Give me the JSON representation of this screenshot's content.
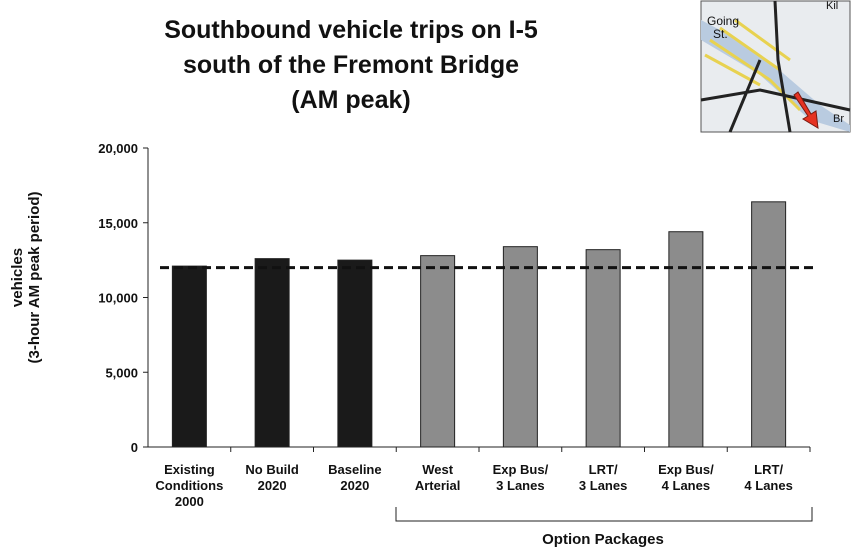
{
  "chart_data": {
    "type": "bar",
    "title": [
      "Southbound vehicle trips on I-5",
      "south of the Fremont Bridge",
      "(AM peak)"
    ],
    "y_label": [
      "vehicles",
      "(3-hour AM peak period)"
    ],
    "categories": [
      [
        "Existing",
        "Conditions",
        "2000"
      ],
      [
        "No Build",
        "2020"
      ],
      [
        "Baseline",
        "2020"
      ],
      [
        "West",
        "Arterial"
      ],
      [
        "Exp Bus/",
        "3 Lanes"
      ],
      [
        "LRT/",
        "3 Lanes"
      ],
      [
        "Exp Bus/",
        "4 Lanes"
      ],
      [
        "LRT/",
        "4 Lanes"
      ]
    ],
    "values": [
      12100,
      12600,
      12500,
      12800,
      13400,
      13200,
      14400,
      16400
    ],
    "colors": [
      "#1a1a1a",
      "#1a1a1a",
      "#1a1a1a",
      "#8c8c8c",
      "#8c8c8c",
      "#8c8c8c",
      "#8c8c8c",
      "#8c8c8c"
    ],
    "reference_line": 12000,
    "ylim": [
      0,
      20000
    ],
    "yticks": [
      0,
      {
        "value": 5000,
        "label": "5,000"
      },
      {
        "value": 10000,
        "label": "10,000"
      },
      {
        "value": 15000,
        "label": "15,000"
      },
      {
        "value": 20000,
        "label": "20,000"
      }
    ],
    "group_label": "Option Packages",
    "map_labels": [
      "Going",
      "St.",
      "Kil",
      "Br"
    ]
  }
}
